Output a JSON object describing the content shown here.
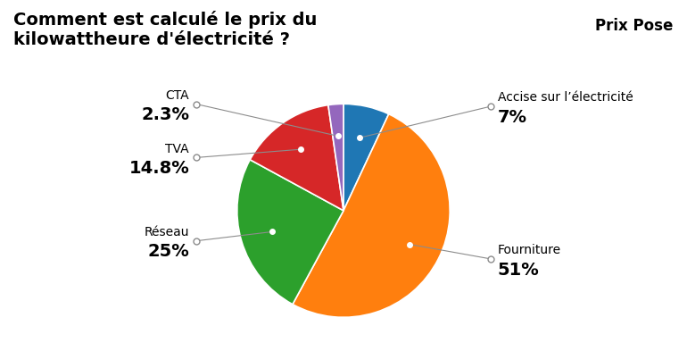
{
  "chart_data": {
    "type": "pie",
    "title": "Comment est calculé le prix du\nkilowattheure d'électricité ?",
    "subtitle": "Prix Pose",
    "categories": [
      "Accise sur l’électricité",
      "Fourniture",
      "Réseau",
      "TVA",
      "CTA"
    ],
    "values": [
      7.0,
      51.0,
      25.0,
      14.8,
      2.3
    ],
    "value_labels": [
      "7%",
      "51%",
      "25%",
      "14.8%",
      "2.3%"
    ],
    "data_labels": true
  }
}
